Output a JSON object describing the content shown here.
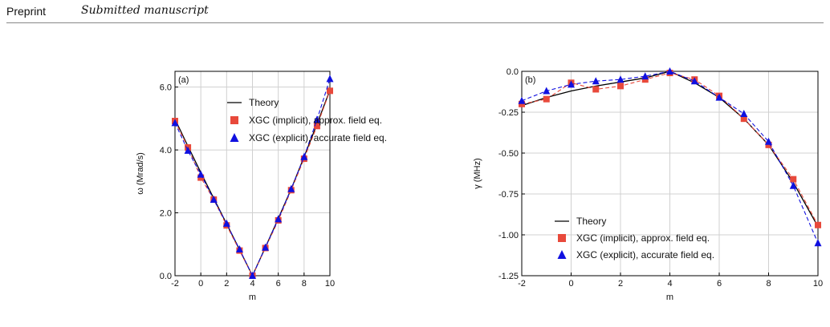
{
  "header": {
    "left": "Preprint",
    "right": "Submitted manuscript"
  },
  "colors": {
    "theory": "#000000",
    "implicit": "#e8493b",
    "explicit": "#1010e0",
    "grid": "#d0d0d0"
  },
  "chart_data": [
    {
      "type": "line",
      "panel_label": "(a)",
      "xlabel": "m",
      "ylabel": "ω (Mrad/s)",
      "xlim": [
        -2,
        10
      ],
      "ylim": [
        0,
        6.5
      ],
      "xticks": [
        -2,
        0,
        2,
        4,
        6,
        8,
        10
      ],
      "yticks": [
        0.0,
        2.0,
        4.0,
        6.0
      ],
      "ytick_labels": [
        "0.0",
        "2.0",
        "4.0",
        "6.0"
      ],
      "grid": true,
      "legend_position": "top-center",
      "series": [
        {
          "name": "Theory",
          "style": "solid",
          "x": [
            -2,
            -1,
            0,
            1,
            2,
            3,
            4,
            5,
            6,
            7,
            8,
            9,
            10
          ],
          "y": [
            4.98,
            4.12,
            3.28,
            2.46,
            1.65,
            0.83,
            0.0,
            0.9,
            1.82,
            2.76,
            3.78,
            4.82,
            5.9
          ]
        },
        {
          "name": "XGC (implicit), approx. field eq.",
          "style": "dashed",
          "marker": "square",
          "x": [
            -2,
            -1,
            0,
            1,
            2,
            3,
            4,
            5,
            6,
            7,
            8,
            9,
            10
          ],
          "y": [
            4.92,
            4.08,
            3.12,
            2.42,
            1.6,
            0.8,
            0.0,
            0.88,
            1.76,
            2.72,
            3.72,
            4.76,
            5.88
          ]
        },
        {
          "name": "XGC (explicit), accurate field eq.",
          "style": "dashed",
          "marker": "triangle",
          "x": [
            -2,
            -1,
            0,
            1,
            2,
            3,
            4,
            5,
            6,
            7,
            8,
            9,
            10
          ],
          "y": [
            4.86,
            3.98,
            3.22,
            2.42,
            1.66,
            0.84,
            0.0,
            0.9,
            1.8,
            2.76,
            3.78,
            4.96,
            6.26
          ]
        }
      ]
    },
    {
      "type": "line",
      "panel_label": "(b)",
      "xlabel": "m",
      "ylabel": "γ (MHz)",
      "xlim": [
        -2,
        10
      ],
      "ylim": [
        -1.25,
        0.0
      ],
      "xticks": [
        -2,
        0,
        2,
        4,
        6,
        8,
        10
      ],
      "yticks": [
        0.0,
        -0.25,
        -0.5,
        -0.75,
        -1.0,
        -1.25
      ],
      "ytick_labels": [
        "0.0",
        "-0.25",
        "-0.50",
        "-0.75",
        "-1.00",
        "-1.25"
      ],
      "grid": true,
      "legend_position": "bottom-center",
      "series": [
        {
          "name": "Theory",
          "style": "solid",
          "x": [
            -2,
            -1,
            0,
            1,
            2,
            3,
            4,
            5,
            6,
            7,
            8,
            9,
            10
          ],
          "y": [
            -0.21,
            -0.16,
            -0.12,
            -0.09,
            -0.065,
            -0.04,
            0.0,
            -0.07,
            -0.16,
            -0.29,
            -0.45,
            -0.68,
            -0.95
          ]
        },
        {
          "name": "XGC (implicit), approx. field eq.",
          "style": "dashed",
          "marker": "square",
          "x": [
            -2,
            -1,
            0,
            1,
            2,
            3,
            4,
            5,
            6,
            7,
            8,
            9,
            10
          ],
          "y": [
            -0.2,
            -0.17,
            -0.07,
            -0.11,
            -0.09,
            -0.05,
            -0.01,
            -0.05,
            -0.15,
            -0.29,
            -0.45,
            -0.66,
            -0.94
          ]
        },
        {
          "name": "XGC (explicit), accurate field eq.",
          "style": "dashed",
          "marker": "triangle",
          "x": [
            -2,
            -1,
            0,
            1,
            2,
            3,
            4,
            5,
            6,
            7,
            8,
            9,
            10
          ],
          "y": [
            -0.18,
            -0.12,
            -0.08,
            -0.06,
            -0.05,
            -0.03,
            0.0,
            -0.06,
            -0.16,
            -0.26,
            -0.43,
            -0.7,
            -1.05
          ]
        }
      ]
    }
  ]
}
